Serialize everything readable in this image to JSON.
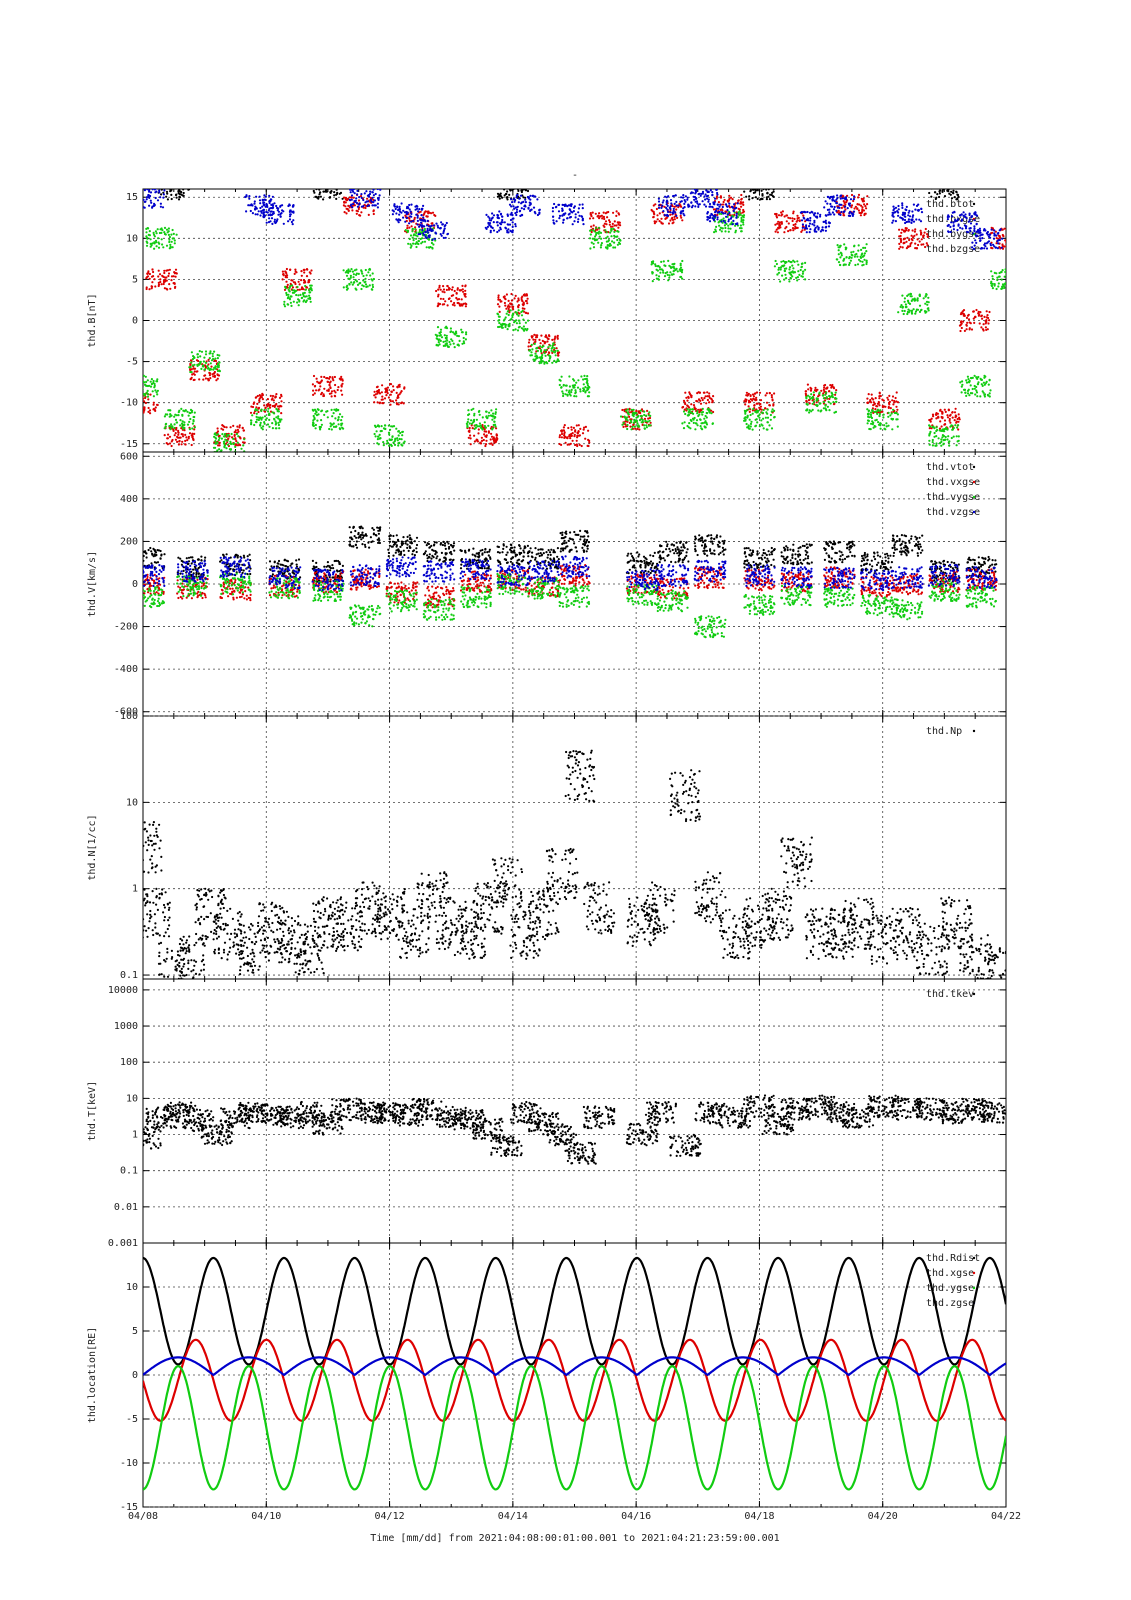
{
  "figure": {
    "top_mark": "-",
    "x_caption": "Time [mm/dd]  from 2021:04:08:00:01:00.001  to  2021:04:21:23:59:00.001",
    "x_tick_labels": [
      "04/08",
      "04/10",
      "04/12",
      "04/14",
      "04/16",
      "04/18",
      "04/20",
      "04/22"
    ],
    "x_tick_days": [
      0,
      2,
      4,
      6,
      8,
      10,
      12,
      14
    ],
    "x_range_days": [
      0,
      14
    ]
  },
  "colors": {
    "black": "#000000",
    "red": "#dd0000",
    "green": "#11cc11",
    "blue": "#0000cc",
    "grid": "#444444"
  },
  "chart_data": [
    {
      "type": "scatter",
      "ylabel": "thd.B[nT]",
      "ylim": [
        -16,
        16
      ],
      "y_ticks": [
        -15,
        -10,
        -5,
        0,
        5,
        10,
        15
      ],
      "y_tick_labels": [
        "-15",
        "-10",
        "-5",
        "0",
        "5",
        "10",
        "15"
      ],
      "legend": [
        "thd.btot",
        "thd.bxgse",
        "thd.bygse",
        "thd.bzgse"
      ],
      "legend_position": "top-right",
      "grid": true,
      "series": [
        {
          "name": "thd.btot",
          "color": "black",
          "style": "dots",
          "description_points": [
            [
              0.5,
              16
            ],
            [
              3,
              16
            ],
            [
              6,
              16
            ],
            [
              10,
              16
            ],
            [
              13,
              16
            ]
          ]
        },
        {
          "name": "thd.bxgse",
          "color": "red",
          "style": "dots",
          "x": [
            0,
            0.3,
            0.6,
            1.0,
            1.4,
            2.0,
            2.5,
            3.0,
            3.5,
            4.0,
            4.5,
            5.0,
            5.5,
            6.0,
            6.5,
            7.0,
            7.5,
            8.0,
            8.5,
            9.0,
            9.5,
            10.0,
            10.5,
            11.0,
            11.5,
            12.0,
            12.5,
            13.0,
            13.5,
            14.0
          ],
          "y": [
            -10,
            5,
            -14,
            -6,
            -14,
            -10,
            5,
            -8,
            14,
            -9,
            12,
            3,
            -14,
            2,
            -3,
            -14,
            12,
            -12,
            13,
            -10,
            14,
            -10,
            12,
            -9,
            14,
            -10,
            10,
            -12,
            0,
            10
          ]
        },
        {
          "name": "thd.bygse",
          "color": "green",
          "style": "dots",
          "x": [
            0,
            0.3,
            0.6,
            1.0,
            1.4,
            2.0,
            2.5,
            3.0,
            3.5,
            4.0,
            4.5,
            5.0,
            5.5,
            6.0,
            6.5,
            7.0,
            7.5,
            8.0,
            8.5,
            9.0,
            9.5,
            10.0,
            10.5,
            11.0,
            11.5,
            12.0,
            12.5,
            13.0,
            13.5,
            14.0
          ],
          "y": [
            -8,
            10,
            -12,
            -5,
            -15,
            -12,
            3,
            -12,
            5,
            -14,
            10,
            -2,
            -12,
            0,
            -4,
            -8,
            10,
            -12,
            6,
            -12,
            12,
            -12,
            6,
            -10,
            8,
            -12,
            2,
            -14,
            -8,
            5
          ]
        },
        {
          "name": "thd.bzgse",
          "color": "blue",
          "style": "dots",
          "x": [
            0.1,
            1.9,
            2.2,
            3.6,
            4.3,
            4.7,
            5.8,
            6.2,
            6.9,
            8.6,
            9.1,
            9.4,
            10.9,
            11.3,
            12.4,
            13.3,
            13.7
          ],
          "y": [
            15,
            14,
            13,
            15,
            13,
            11,
            12,
            14,
            13,
            14,
            15,
            13,
            12,
            14,
            13,
            12,
            10
          ]
        }
      ]
    },
    {
      "type": "scatter",
      "ylabel": "thd.V[km/s]",
      "ylim": [
        -620,
        620
      ],
      "y_ticks": [
        -600,
        -400,
        -200,
        0,
        200,
        400,
        600
      ],
      "y_tick_labels": [
        "-600",
        "-400",
        "-200",
        "0",
        "200",
        "400",
        "600"
      ],
      "legend": [
        "thd.vtot",
        "thd.vxgse",
        "thd.vygse",
        "thd.vzgse"
      ],
      "legend_position": "top-right",
      "grid": true,
      "series": [
        {
          "name": "thd.vtot",
          "color": "black",
          "style": "dots",
          "x": [
            0.1,
            0.8,
            1.5,
            2.3,
            3.0,
            3.6,
            4.2,
            4.8,
            5.4,
            6.0,
            6.5,
            7.0,
            8.1,
            8.6,
            9.2,
            10.0,
            10.6,
            11.3,
            11.9,
            12.4,
            13.0,
            13.6
          ],
          "y": [
            120,
            80,
            90,
            70,
            60,
            220,
            180,
            150,
            120,
            140,
            120,
            200,
            100,
            150,
            180,
            120,
            140,
            150,
            100,
            180,
            60,
            80
          ]
        },
        {
          "name": "thd.vxgse",
          "color": "red",
          "style": "dots",
          "x": [
            0.1,
            0.8,
            1.5,
            2.3,
            3.0,
            3.6,
            4.2,
            4.8,
            5.4,
            6.0,
            6.5,
            7.0,
            8.1,
            8.6,
            9.2,
            10.0,
            10.6,
            11.3,
            11.9,
            12.4,
            13.0,
            13.6
          ],
          "y": [
            0,
            -20,
            -30,
            -10,
            10,
            20,
            -40,
            -60,
            10,
            20,
            -10,
            40,
            0,
            -20,
            30,
            20,
            10,
            30,
            -10,
            0,
            10,
            20
          ]
        },
        {
          "name": "thd.vygse",
          "color": "green",
          "style": "dots",
          "x": [
            0.1,
            0.8,
            1.5,
            2.3,
            3.0,
            3.6,
            4.2,
            4.8,
            5.4,
            6.0,
            6.5,
            7.0,
            8.1,
            8.6,
            9.2,
            10.0,
            10.6,
            11.3,
            11.9,
            12.4,
            13.0,
            13.6
          ],
          "y": [
            -60,
            -10,
            0,
            -20,
            -30,
            -150,
            -80,
            -120,
            -60,
            0,
            -20,
            -60,
            -50,
            -80,
            -200,
            -100,
            -50,
            -60,
            -100,
            -120,
            -30,
            -60
          ]
        },
        {
          "name": "thd.vzgse",
          "color": "blue",
          "style": "dots",
          "x": [
            0.1,
            0.8,
            1.5,
            2.3,
            3.0,
            3.6,
            4.2,
            4.8,
            5.4,
            6.0,
            6.5,
            7.0,
            8.1,
            8.6,
            9.2,
            10.0,
            10.6,
            11.3,
            11.9,
            12.4,
            13.0,
            13.6
          ],
          "y": [
            40,
            60,
            80,
            30,
            20,
            40,
            80,
            60,
            70,
            40,
            60,
            80,
            20,
            40,
            60,
            40,
            30,
            30,
            20,
            30,
            40,
            30
          ]
        }
      ]
    },
    {
      "type": "scatter",
      "ylabel": "thd.N[1/cc]",
      "yscale": "log",
      "ylim": [
        0.09,
        100
      ],
      "y_ticks": [
        0.1,
        1,
        10,
        100
      ],
      "y_tick_labels": [
        "0.1",
        "1",
        "10",
        "100"
      ],
      "legend": [
        "thd.Np"
      ],
      "legend_position": "top-right",
      "grid": true,
      "series": [
        {
          "name": "thd.Np",
          "color": "black",
          "style": "dots",
          "x": [
            0.05,
            0.2,
            0.5,
            0.8,
            1.1,
            1.4,
            1.8,
            2.1,
            2.4,
            2.7,
            3.0,
            3.3,
            3.7,
            4.0,
            4.4,
            4.7,
            5.0,
            5.3,
            5.6,
            5.9,
            6.2,
            6.5,
            6.8,
            7.1,
            7.4,
            8.1,
            8.4,
            8.8,
            9.2,
            9.6,
            10.0,
            10.3,
            10.6,
            11.0,
            11.3,
            11.6,
            12.0,
            12.4,
            12.8,
            13.2,
            13.5,
            13.8
          ],
          "y": [
            3,
            0.5,
            0.12,
            0.15,
            0.5,
            0.3,
            0.2,
            0.35,
            0.25,
            0.2,
            0.4,
            0.35,
            0.6,
            0.5,
            0.3,
            0.8,
            0.4,
            0.3,
            0.6,
            1.2,
            0.3,
            0.5,
            1.5,
            20,
            0.6,
            0.4,
            0.6,
            12,
            0.8,
            0.3,
            0.4,
            0.5,
            2,
            0.3,
            0.3,
            0.4,
            0.25,
            0.3,
            0.2,
            0.4,
            0.15,
            0.11
          ]
        }
      ]
    },
    {
      "type": "scatter",
      "ylabel": "thd.T[keV]",
      "yscale": "log",
      "ylim": [
        0.001,
        20000
      ],
      "y_ticks": [
        0.001,
        0.01,
        0.1,
        1,
        10,
        100,
        1000,
        10000
      ],
      "y_tick_labels": [
        "0.001",
        "0.01",
        "0.1",
        "1",
        "10",
        "100",
        "1000",
        "10000"
      ],
      "legend": [
        "thd.tkev"
      ],
      "legend_position": "top-right",
      "grid": true,
      "series": [
        {
          "name": "thd.tkev",
          "color": "black",
          "style": "dots",
          "x": [
            0.05,
            0.3,
            0.6,
            0.9,
            1.2,
            1.5,
            1.8,
            2.1,
            2.4,
            2.7,
            3.0,
            3.3,
            3.7,
            4.0,
            4.3,
            4.6,
            5.0,
            5.3,
            5.6,
            5.9,
            6.2,
            6.5,
            6.8,
            7.1,
            7.4,
            8.1,
            8.4,
            8.8,
            9.2,
            9.6,
            10.0,
            10.3,
            10.6,
            11.0,
            11.3,
            11.6,
            12.0,
            12.4,
            12.8,
            13.2,
            13.5,
            13.8
          ],
          "y": [
            0.8,
            3,
            4,
            2.5,
            1,
            3,
            4,
            3.5,
            3,
            4,
            2,
            5,
            4,
            4,
            3.5,
            5,
            3,
            2.5,
            1.5,
            0.5,
            4,
            2,
            1,
            0.3,
            3,
            1,
            4,
            0.5,
            4,
            3,
            6,
            2,
            5,
            6,
            4,
            3,
            6,
            5,
            5,
            4,
            5,
            4
          ]
        }
      ]
    },
    {
      "type": "line",
      "ylabel": "thd.location[RE]",
      "ylim": [
        -15,
        15
      ],
      "y_ticks": [
        -15,
        -10,
        -5,
        0,
        5,
        10
      ],
      "y_tick_labels": [
        "-15",
        "-10",
        "-5",
        "0",
        "5",
        "10"
      ],
      "legend": [
        "thd.Rdist",
        "thd.xgse",
        "thd.ygse",
        "thd.zgse"
      ],
      "legend_position": "top-right",
      "grid": true,
      "orbit_period_days": 1.145,
      "orbit_phase_days": 0.57,
      "series": [
        {
          "name": "thd.Rdist",
          "color": "black",
          "amplitude_max": 13.3,
          "amplitude_min": 1.2
        },
        {
          "name": "thd.xgse",
          "color": "red",
          "amplitude_max": 4.0,
          "amplitude_min": -5.2
        },
        {
          "name": "thd.ygse",
          "color": "green",
          "amplitude_max": 1.0,
          "amplitude_min": -13.0
        },
        {
          "name": "thd.zgse",
          "color": "blue",
          "amplitude_max": 2.0,
          "amplitude_min": 0.0
        }
      ]
    }
  ]
}
